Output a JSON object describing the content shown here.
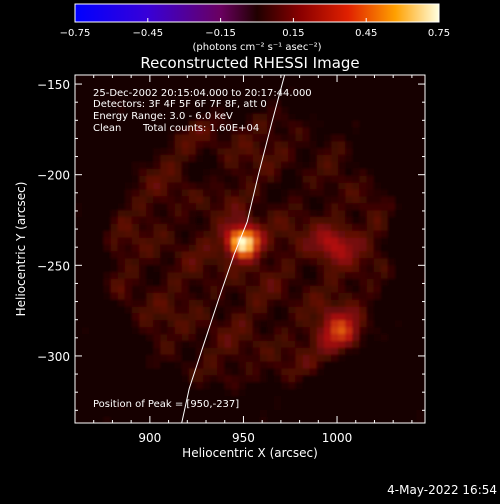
{
  "colorbar": {
    "ticks": [
      "-0.75",
      "-0.45",
      "-0.15",
      "0.15",
      "0.45",
      "0.75"
    ],
    "range": [
      -0.75,
      0.75
    ],
    "unit_label": "(photons cm⁻² s⁻¹ asec⁻²)"
  },
  "chart_data": {
    "type": "heatmap",
    "title": "Reconstructed RHESSI Image",
    "xlabel": "Heliocentric X (arcsec)",
    "ylabel": "Heliocentric Y (arcsec)",
    "xlim": [
      860,
      1047
    ],
    "ylim": [
      -337,
      -145
    ],
    "x_ticks": [
      900,
      950,
      1000
    ],
    "y_ticks": [
      -150,
      -200,
      -250,
      -300
    ],
    "annotations": [
      "25-Dec-2002 20:15:04.000 to 20:17:44.000",
      "Detectors: 3F 4F 5F 6F 7F 8F, att 0",
      "Energy Range: 3.0 - 6.0 keV",
      "Clean",
      "Total counts: 1.60E+04"
    ],
    "peak_label": "Position of Peak = [950,-237]",
    "peak_position": [
      950,
      -237
    ],
    "sources": [
      {
        "x": 950,
        "y": -237,
        "intensity": 0.75
      },
      {
        "x": 1002,
        "y": -287,
        "intensity": 0.35
      },
      {
        "x": 998,
        "y": -238,
        "intensity": 0.25
      }
    ],
    "limb_curve": {
      "x": [
        917,
        921,
        928,
        937,
        945,
        952,
        958,
        965,
        972
      ],
      "y": [
        -337,
        -318,
        -296,
        -268,
        -244,
        -226,
        -200,
        -172,
        -145
      ]
    },
    "grid": false
  },
  "footer": {
    "timestamp": "4-May-2022 16:54"
  }
}
